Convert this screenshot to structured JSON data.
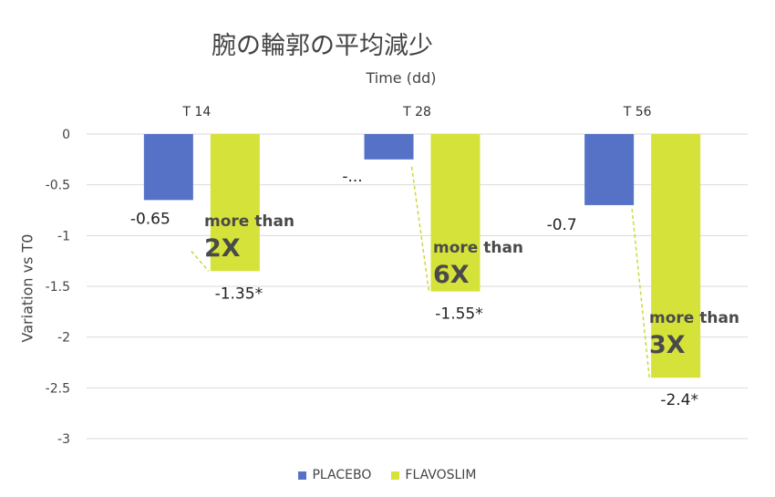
{
  "chart_data": {
    "type": "bar",
    "title": "腕の輪郭の平均減少",
    "xlabel": "Time (dd)",
    "ylabel": "Variation vs T0",
    "categories": [
      "T 14",
      "T 28",
      "T 56"
    ],
    "series": [
      {
        "name": "PLACEBO",
        "color": "#5572c6",
        "values": [
          -0.65,
          -0.25,
          -0.7
        ],
        "labels": [
          "-0.65",
          "-...",
          "-0.7"
        ]
      },
      {
        "name": "FLAVOSLIM",
        "color": "#d5e23a",
        "values": [
          -1.35,
          -1.55,
          -2.4
        ],
        "labels": [
          "-1.35*",
          "-1.55*",
          "-2.4*"
        ]
      }
    ],
    "yticks": [
      "0",
      "-0.5",
      "-1",
      "-1.5",
      "-2",
      "-2.5",
      "-3"
    ],
    "ylim": [
      -3,
      0
    ],
    "grid": true,
    "legend_position": "bottom",
    "annotations": [
      {
        "line1": "more than",
        "line2": "2X"
      },
      {
        "line1": "more than",
        "line2": "6X"
      },
      {
        "line1": "more than",
        "line2": "3X"
      }
    ],
    "connector_color": "#cbd93a"
  }
}
